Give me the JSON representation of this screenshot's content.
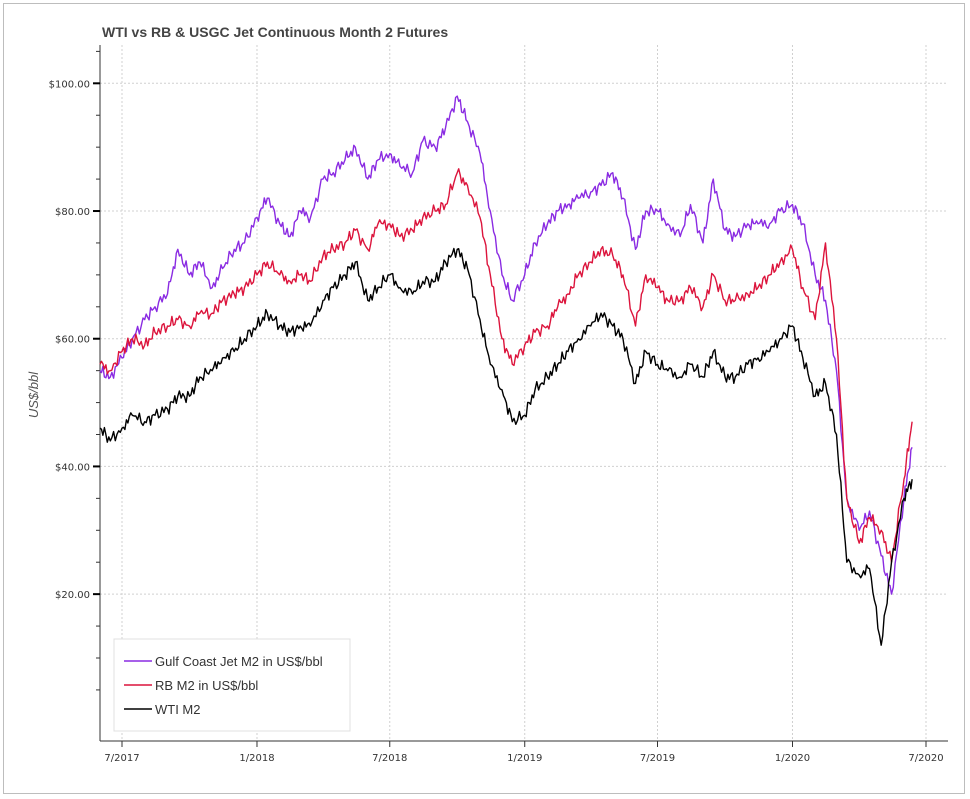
{
  "chart_data": {
    "type": "line",
    "title": "WTI vs RB & USGC Jet Continuous Month 2 Futures",
    "ylabel": "US$/bbl",
    "xlabel": "",
    "ylim": [
      -3,
      106
    ],
    "xlim": [
      "2017-06-01",
      "2020-07-31"
    ],
    "y_ticks": [
      20,
      40,
      60,
      80,
      100
    ],
    "y_tick_labels": [
      "$20.00",
      "$40.00",
      "$60.00",
      "$80.00",
      "$100.00"
    ],
    "x_ticks": [
      "2017-07-01",
      "2018-01-01",
      "2018-07-01",
      "2019-01-01",
      "2019-07-01",
      "2020-01-01",
      "2020-07-01"
    ],
    "x_tick_labels": [
      "7/2017",
      "1/2018",
      "7/2018",
      "1/2019",
      "7/2019",
      "1/2020",
      "7/2020"
    ],
    "grid": true,
    "legend_position": "bottom-left",
    "colors": {
      "jet": "#8a2be2",
      "rb": "#dc143c",
      "wti": "#000000",
      "grid": "#d0d0d0"
    },
    "series": [
      {
        "name": "Gulf Coast Jet M2 in US$/bbl",
        "color": "#8a2be2",
        "x": [
          "2017-06-01",
          "2017-06-15",
          "2017-07-01",
          "2017-07-15",
          "2017-08-01",
          "2017-08-15",
          "2017-09-01",
          "2017-09-15",
          "2017-10-01",
          "2017-10-15",
          "2017-11-01",
          "2017-11-15",
          "2017-12-01",
          "2017-12-15",
          "2018-01-01",
          "2018-01-15",
          "2018-02-01",
          "2018-02-15",
          "2018-03-01",
          "2018-03-15",
          "2018-04-01",
          "2018-04-15",
          "2018-05-01",
          "2018-05-15",
          "2018-06-01",
          "2018-06-15",
          "2018-07-01",
          "2018-07-15",
          "2018-08-01",
          "2018-08-15",
          "2018-09-01",
          "2018-09-15",
          "2018-10-01",
          "2018-10-15",
          "2018-11-01",
          "2018-11-15",
          "2018-12-01",
          "2018-12-15",
          "2019-01-01",
          "2019-01-15",
          "2019-02-01",
          "2019-02-15",
          "2019-03-01",
          "2019-03-15",
          "2019-04-01",
          "2019-04-15",
          "2019-05-01",
          "2019-05-15",
          "2019-06-01",
          "2019-06-15",
          "2019-07-01",
          "2019-07-15",
          "2019-08-01",
          "2019-08-15",
          "2019-09-01",
          "2019-09-15",
          "2019-10-01",
          "2019-10-15",
          "2019-11-01",
          "2019-11-15",
          "2019-12-01",
          "2019-12-15",
          "2020-01-01",
          "2020-01-15",
          "2020-02-01",
          "2020-02-15",
          "2020-03-01",
          "2020-03-15",
          "2020-04-01",
          "2020-04-15",
          "2020-05-01",
          "2020-05-15",
          "2020-06-01",
          "2020-06-12"
        ],
        "values": [
          55,
          54,
          57,
          60,
          63,
          65,
          67,
          74,
          70,
          72,
          68,
          71,
          74,
          75,
          79,
          82,
          78,
          76,
          80,
          79,
          85,
          86,
          88,
          90,
          85,
          88,
          89,
          87,
          86,
          91,
          90,
          93,
          98,
          94,
          89,
          80,
          70,
          66,
          70,
          75,
          78,
          80,
          81,
          82,
          83,
          84,
          86,
          82,
          74,
          80,
          80,
          78,
          76,
          81,
          75,
          85,
          77,
          76,
          78,
          78,
          78,
          80,
          81,
          78,
          70,
          66,
          55,
          35,
          30,
          33,
          26,
          20,
          35,
          43
        ]
      },
      {
        "name": "RB M2 in US$/bbl",
        "color": "#dc143c",
        "x": [
          "2017-06-01",
          "2017-06-15",
          "2017-07-01",
          "2017-07-15",
          "2017-08-01",
          "2017-08-15",
          "2017-09-01",
          "2017-09-15",
          "2017-10-01",
          "2017-10-15",
          "2017-11-01",
          "2017-11-15",
          "2017-12-01",
          "2017-12-15",
          "2018-01-01",
          "2018-01-15",
          "2018-02-01",
          "2018-02-15",
          "2018-03-01",
          "2018-03-15",
          "2018-04-01",
          "2018-04-15",
          "2018-05-01",
          "2018-05-15",
          "2018-06-01",
          "2018-06-15",
          "2018-07-01",
          "2018-07-15",
          "2018-08-01",
          "2018-08-15",
          "2018-09-01",
          "2018-09-15",
          "2018-10-01",
          "2018-10-15",
          "2018-11-01",
          "2018-11-15",
          "2018-12-01",
          "2018-12-15",
          "2019-01-01",
          "2019-01-15",
          "2019-02-01",
          "2019-02-15",
          "2019-03-01",
          "2019-03-15",
          "2019-04-01",
          "2019-04-15",
          "2019-05-01",
          "2019-05-15",
          "2019-06-01",
          "2019-06-15",
          "2019-07-01",
          "2019-07-15",
          "2019-08-01",
          "2019-08-15",
          "2019-09-01",
          "2019-09-15",
          "2019-10-01",
          "2019-10-15",
          "2019-11-01",
          "2019-11-15",
          "2019-12-01",
          "2019-12-15",
          "2020-01-01",
          "2020-01-15",
          "2020-02-01",
          "2020-02-15",
          "2020-03-01",
          "2020-03-15",
          "2020-04-01",
          "2020-04-15",
          "2020-05-01",
          "2020-05-15",
          "2020-06-01",
          "2020-06-12"
        ],
        "values": [
          56,
          55,
          58,
          60,
          59,
          61,
          62,
          63,
          62,
          64,
          64,
          66,
          67,
          68,
          70,
          72,
          70,
          69,
          70,
          69,
          73,
          74,
          75,
          77,
          74,
          78,
          78,
          76,
          77,
          79,
          80,
          81,
          86,
          84,
          79,
          70,
          60,
          56,
          59,
          61,
          62,
          65,
          67,
          70,
          72,
          74,
          73,
          70,
          62,
          70,
          68,
          66,
          66,
          68,
          65,
          70,
          66,
          66,
          67,
          68,
          70,
          72,
          74,
          68,
          63,
          75,
          60,
          35,
          28,
          32,
          30,
          25,
          38,
          47
        ]
      },
      {
        "name": "WTI M2",
        "color": "#000000",
        "x": [
          "2017-06-01",
          "2017-06-15",
          "2017-07-01",
          "2017-07-15",
          "2017-08-01",
          "2017-08-15",
          "2017-09-01",
          "2017-09-15",
          "2017-10-01",
          "2017-10-15",
          "2017-11-01",
          "2017-11-15",
          "2017-12-01",
          "2017-12-15",
          "2018-01-01",
          "2018-01-15",
          "2018-02-01",
          "2018-02-15",
          "2018-03-01",
          "2018-03-15",
          "2018-04-01",
          "2018-04-15",
          "2018-05-01",
          "2018-05-15",
          "2018-06-01",
          "2018-06-15",
          "2018-07-01",
          "2018-07-15",
          "2018-08-01",
          "2018-08-15",
          "2018-09-01",
          "2018-09-15",
          "2018-10-01",
          "2018-10-15",
          "2018-11-01",
          "2018-11-15",
          "2018-12-01",
          "2018-12-15",
          "2019-01-01",
          "2019-01-15",
          "2019-02-01",
          "2019-02-15",
          "2019-03-01",
          "2019-03-15",
          "2019-04-01",
          "2019-04-15",
          "2019-05-01",
          "2019-05-15",
          "2019-06-01",
          "2019-06-15",
          "2019-07-01",
          "2019-07-15",
          "2019-08-01",
          "2019-08-15",
          "2019-09-01",
          "2019-09-15",
          "2019-10-01",
          "2019-10-15",
          "2019-11-01",
          "2019-11-15",
          "2019-12-01",
          "2019-12-15",
          "2020-01-01",
          "2020-01-15",
          "2020-02-01",
          "2020-02-15",
          "2020-03-01",
          "2020-03-15",
          "2020-04-01",
          "2020-04-15",
          "2020-05-01",
          "2020-05-15",
          "2020-06-01",
          "2020-06-12"
        ],
        "values": [
          46,
          44,
          46,
          48,
          47,
          48,
          49,
          51,
          51,
          54,
          55,
          57,
          58,
          60,
          62,
          64,
          62,
          61,
          62,
          62,
          66,
          68,
          70,
          72,
          66,
          68,
          70,
          68,
          67,
          69,
          69,
          72,
          74,
          71,
          63,
          56,
          52,
          47,
          48,
          52,
          54,
          56,
          58,
          60,
          62,
          64,
          62,
          60,
          53,
          58,
          56,
          55,
          54,
          56,
          54,
          58,
          54,
          54,
          56,
          57,
          58,
          60,
          62,
          57,
          51,
          53,
          45,
          25,
          23,
          24,
          12,
          25,
          35,
          38
        ]
      }
    ]
  }
}
